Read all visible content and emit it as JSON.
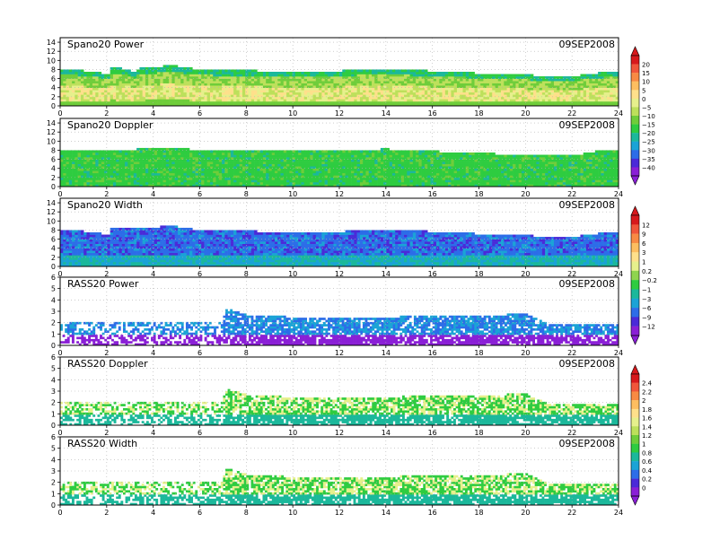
{
  "date": "09SEP2008",
  "chart_data": [
    {
      "type": "heatmap",
      "title": "Spano20 Power",
      "date": "09SEP2008",
      "xlim": [
        0,
        24
      ],
      "ylim": [
        0,
        15
      ],
      "x_ticks": [
        0,
        2,
        4,
        6,
        8,
        10,
        12,
        14,
        16,
        18,
        20,
        22,
        24
      ],
      "y_ticks": [
        0,
        2,
        4,
        6,
        8,
        10,
        12,
        14
      ],
      "top_height_km": [
        [
          0,
          8.0
        ],
        [
          0.4,
          8.2
        ],
        [
          2.1,
          7.0
        ],
        [
          2.2,
          8.4
        ],
        [
          2.8,
          8.2
        ],
        [
          3.2,
          7.2
        ],
        [
          3.4,
          8.3
        ],
        [
          4.0,
          8.4
        ],
        [
          4.8,
          9.0
        ],
        [
          6,
          8.0
        ],
        [
          8,
          7.8
        ],
        [
          10,
          7.6
        ],
        [
          12,
          7.7
        ],
        [
          13,
          8.0
        ],
        [
          14,
          8.2
        ],
        [
          16,
          7.7
        ],
        [
          18,
          7.2
        ],
        [
          20,
          6.8
        ],
        [
          22,
          6.5
        ],
        [
          23,
          7.2
        ],
        [
          24,
          7.6
        ]
      ],
      "colorbar": "power"
    },
    {
      "type": "heatmap",
      "title": "Spano20 Doppler",
      "date": "09SEP2008",
      "xlim": [
        0,
        24
      ],
      "ylim": [
        0,
        15
      ],
      "x_ticks": [
        0,
        2,
        4,
        6,
        8,
        10,
        12,
        14,
        16,
        18,
        20,
        22,
        24
      ],
      "y_ticks": [
        0,
        2,
        4,
        6,
        8,
        10,
        12,
        14
      ],
      "top_height_km": [
        [
          0,
          8.0
        ],
        [
          2,
          8.0
        ],
        [
          4,
          8.4
        ],
        [
          6,
          8.2
        ],
        [
          8,
          8.0
        ],
        [
          10,
          8.0
        ],
        [
          12,
          7.8
        ],
        [
          14,
          8.3
        ],
        [
          16,
          7.8
        ],
        [
          18,
          7.4
        ],
        [
          20,
          7.0
        ],
        [
          22,
          6.8
        ],
        [
          23,
          7.8
        ],
        [
          24,
          8.2
        ]
      ],
      "colorbar": "power"
    },
    {
      "type": "heatmap",
      "title": "Spano20 Width",
      "date": "09SEP2008",
      "xlim": [
        0,
        24
      ],
      "ylim": [
        0,
        15
      ],
      "x_ticks": [
        0,
        2,
        4,
        6,
        8,
        10,
        12,
        14,
        16,
        18,
        20,
        22,
        24
      ],
      "y_ticks": [
        0,
        2,
        4,
        6,
        8,
        10,
        12,
        14
      ],
      "top_height_km": [
        [
          0,
          8.0
        ],
        [
          0.4,
          8.2
        ],
        [
          2.1,
          7.0
        ],
        [
          2.2,
          8.4
        ],
        [
          3.4,
          8.3
        ],
        [
          4.8,
          9.0
        ],
        [
          6,
          8.0
        ],
        [
          8,
          7.8
        ],
        [
          10,
          7.6
        ],
        [
          12,
          7.7
        ],
        [
          14,
          8.2
        ],
        [
          16,
          7.7
        ],
        [
          18,
          7.2
        ],
        [
          20,
          6.8
        ],
        [
          22,
          6.5
        ],
        [
          23,
          7.2
        ],
        [
          24,
          7.6
        ]
      ],
      "colorbar": "width"
    },
    {
      "type": "heatmap",
      "title": "RASS20 Power",
      "date": "09SEP2008",
      "xlim": [
        0,
        24
      ],
      "ylim": [
        0,
        6
      ],
      "x_ticks": [
        0,
        2,
        4,
        6,
        8,
        10,
        12,
        14,
        16,
        18,
        20,
        22,
        24
      ],
      "y_ticks": [
        0,
        1,
        2,
        3,
        4,
        5,
        6
      ],
      "top_height_km": [
        [
          0,
          2.0
        ],
        [
          7.0,
          2.0
        ],
        [
          7.1,
          3.3
        ],
        [
          8,
          2.7
        ],
        [
          10,
          2.5
        ],
        [
          12,
          2.5
        ],
        [
          14,
          2.5
        ],
        [
          16,
          2.6
        ],
        [
          18,
          2.6
        ],
        [
          20,
          2.8
        ],
        [
          21,
          1.9
        ],
        [
          24,
          1.9
        ]
      ],
      "colorbar": "width"
    },
    {
      "type": "heatmap",
      "title": "RASS20 Doppler",
      "date": "09SEP2008",
      "xlim": [
        0,
        24
      ],
      "ylim": [
        0,
        6
      ],
      "x_ticks": [
        0,
        2,
        4,
        6,
        8,
        10,
        12,
        14,
        16,
        18,
        20,
        22,
        24
      ],
      "y_ticks": [
        0,
        1,
        2,
        3,
        4,
        5,
        6
      ],
      "top_height_km": [
        [
          0,
          2.0
        ],
        [
          7.0,
          2.0
        ],
        [
          7.1,
          3.3
        ],
        [
          8,
          2.7
        ],
        [
          10,
          2.5
        ],
        [
          12,
          2.5
        ],
        [
          14,
          2.5
        ],
        [
          16,
          2.6
        ],
        [
          18,
          2.6
        ],
        [
          20,
          2.8
        ],
        [
          21,
          1.9
        ],
        [
          24,
          1.9
        ]
      ],
      "colorbar": "rass"
    },
    {
      "type": "heatmap",
      "title": "RASS20 Width",
      "date": "09SEP2008",
      "xlim": [
        0,
        24
      ],
      "ylim": [
        0,
        6
      ],
      "x_ticks": [
        0,
        2,
        4,
        6,
        8,
        10,
        12,
        14,
        16,
        18,
        20,
        22,
        24
      ],
      "y_ticks": [
        0,
        1,
        2,
        3,
        4,
        5,
        6
      ],
      "top_height_km": [
        [
          0,
          2.0
        ],
        [
          7.0,
          2.0
        ],
        [
          7.1,
          3.3
        ],
        [
          8,
          2.7
        ],
        [
          10,
          2.5
        ],
        [
          12,
          2.5
        ],
        [
          14,
          2.5
        ],
        [
          16,
          2.6
        ],
        [
          18,
          2.6
        ],
        [
          20,
          2.8
        ],
        [
          21,
          1.9
        ],
        [
          24,
          1.9
        ]
      ],
      "colorbar": "rass"
    }
  ],
  "colorbars": {
    "power": {
      "labels": [
        "20",
        "15",
        "10",
        "5",
        "0",
        "−5",
        "−10",
        "−15",
        "−20",
        "−25",
        "−30",
        "−35",
        "−40"
      ],
      "colors": [
        "#d7191c",
        "#f0553a",
        "#f88a43",
        "#fdbe60",
        "#fee08b",
        "#e6f08c",
        "#bde05b",
        "#6fcd3a",
        "#2ecc40",
        "#1bb89b",
        "#1aa3d6",
        "#2c6de8",
        "#4a2ad8",
        "#8a1fd6"
      ]
    },
    "width": {
      "labels": [
        "12",
        "9",
        "6",
        "3",
        "1",
        "0.2",
        "−0.2",
        "−1",
        "−3",
        "−6",
        "−9",
        "−12"
      ],
      "colors": [
        "#d7191c",
        "#f0553a",
        "#f88a43",
        "#fdbe60",
        "#fee08b",
        "#e6f08c",
        "#8fd44e",
        "#2ecc40",
        "#1bb89b",
        "#1aa3d6",
        "#2c6de8",
        "#4a2ad8",
        "#8a1fd6"
      ]
    },
    "rass": {
      "labels": [
        "2.4",
        "2.2",
        "2",
        "1.8",
        "1.6",
        "1.4",
        "1.2",
        "1",
        "0.8",
        "0.6",
        "0.4",
        "0.2",
        "0"
      ],
      "colors": [
        "#d7191c",
        "#f0553a",
        "#f88a43",
        "#fdbe60",
        "#fee08b",
        "#e6f08c",
        "#bde05b",
        "#6fcd3a",
        "#2ecc40",
        "#1bb89b",
        "#1aa3d6",
        "#2c6de8",
        "#4a2ad8",
        "#8a1fd6"
      ]
    }
  }
}
